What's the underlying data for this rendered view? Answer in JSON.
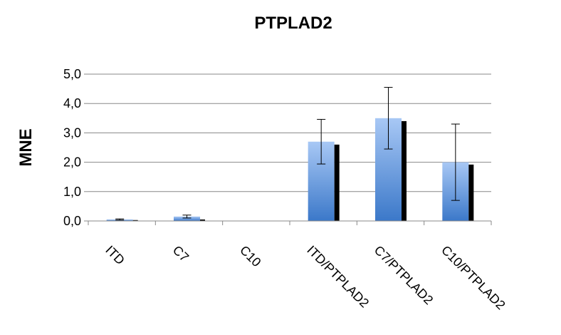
{
  "chart_data": {
    "type": "bar",
    "title": "PTPLAD2",
    "ylabel": "MNE",
    "xlabel": "",
    "categories": [
      "ITD",
      "C7",
      "C10",
      "ITD/PTPLAD2",
      "C7/PTPLAD2",
      "C10/PTPLAD2"
    ],
    "ylim": [
      0,
      5
    ],
    "yticks": [
      "0,0",
      "1,0",
      "2,0",
      "3,0",
      "4,0",
      "5,0"
    ],
    "ytick_values": [
      0,
      1,
      2,
      3,
      4,
      5
    ],
    "grid": true,
    "series": [
      {
        "values": [
          0.05,
          0.15,
          0.01,
          2.7,
          3.5,
          2.0
        ],
        "error": [
          0.02,
          0.05,
          0.0,
          0.76,
          1.05,
          1.3
        ],
        "color": "#5b8fd6"
      },
      {
        "values": [
          0.03,
          0.05,
          0.0,
          2.6,
          3.4,
          1.92
        ],
        "color": "#000000"
      }
    ]
  }
}
